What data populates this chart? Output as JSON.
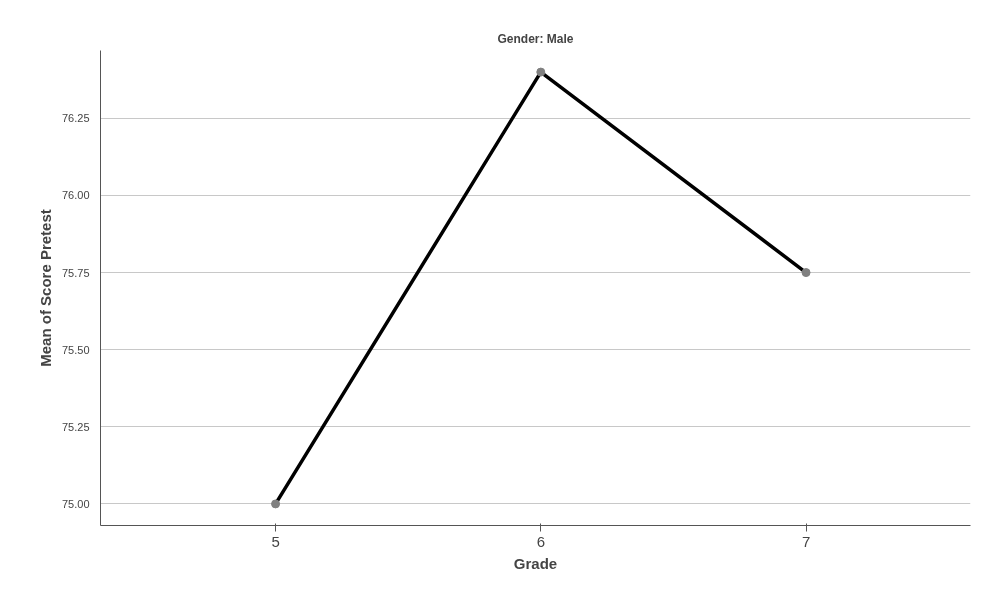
{
  "chart_data": {
    "type": "line",
    "title": "Gender: Male",
    "xlabel": "Grade",
    "ylabel": "Mean of Score Pretest",
    "categories": [
      "5",
      "6",
      "7"
    ],
    "series": [
      {
        "color": "#000000",
        "values": [
          75.0,
          76.4,
          75.75
        ]
      }
    ],
    "ylim": [
      74.93,
      76.47
    ],
    "yticks": [
      {
        "value": 75.0,
        "label": "75.00"
      },
      {
        "value": 75.25,
        "label": "75.25"
      },
      {
        "value": 75.5,
        "label": "75.50"
      },
      {
        "value": 75.75,
        "label": "75.75"
      },
      {
        "value": 76.0,
        "label": "76.00"
      },
      {
        "value": 76.25,
        "label": "76.25"
      }
    ],
    "grid": "y",
    "marker": "circle",
    "line_style": "solid"
  }
}
